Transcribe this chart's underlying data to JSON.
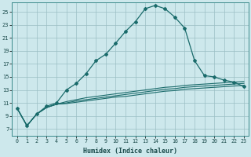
{
  "xlabel": "Humidex (Indice chaleur)",
  "bg_color": "#cde8ec",
  "grid_color": "#9bbfc4",
  "line_color": "#1a6b6b",
  "x_ticks": [
    0,
    1,
    2,
    3,
    4,
    5,
    6,
    7,
    8,
    9,
    10,
    11,
    12,
    13,
    14,
    15,
    16,
    17,
    18,
    19,
    20,
    21,
    22,
    23
  ],
  "y_ticks": [
    7,
    9,
    11,
    13,
    15,
    17,
    19,
    21,
    23,
    25
  ],
  "ylim": [
    6.0,
    26.5
  ],
  "xlim": [
    -0.5,
    23.5
  ],
  "series_peak": [
    10.2,
    7.5,
    9.3,
    10.5,
    11.0,
    13.0,
    14.0,
    15.5,
    17.5,
    18.5,
    20.2,
    22.0,
    23.5,
    25.5,
    26.0,
    25.5,
    24.2,
    22.5,
    17.5,
    15.2,
    15.0,
    14.5,
    14.2,
    13.5
  ],
  "series_flat1": [
    10.2,
    7.5,
    9.3,
    10.3,
    10.8,
    11.2,
    11.5,
    11.8,
    12.0,
    12.2,
    12.4,
    12.6,
    12.8,
    13.0,
    13.2,
    13.4,
    13.5,
    13.7,
    13.8,
    13.9,
    14.0,
    14.1,
    14.2,
    14.3
  ],
  "series_flat2": [
    10.2,
    7.5,
    9.3,
    10.3,
    10.8,
    11.0,
    11.3,
    11.5,
    11.7,
    11.9,
    12.1,
    12.3,
    12.5,
    12.7,
    12.9,
    13.1,
    13.2,
    13.4,
    13.5,
    13.6,
    13.7,
    13.8,
    13.9,
    14.0
  ],
  "series_flat3": [
    10.2,
    7.5,
    9.3,
    10.3,
    10.8,
    10.9,
    11.1,
    11.3,
    11.5,
    11.7,
    11.9,
    12.0,
    12.2,
    12.4,
    12.6,
    12.8,
    12.9,
    13.1,
    13.2,
    13.3,
    13.4,
    13.5,
    13.6,
    13.7
  ]
}
